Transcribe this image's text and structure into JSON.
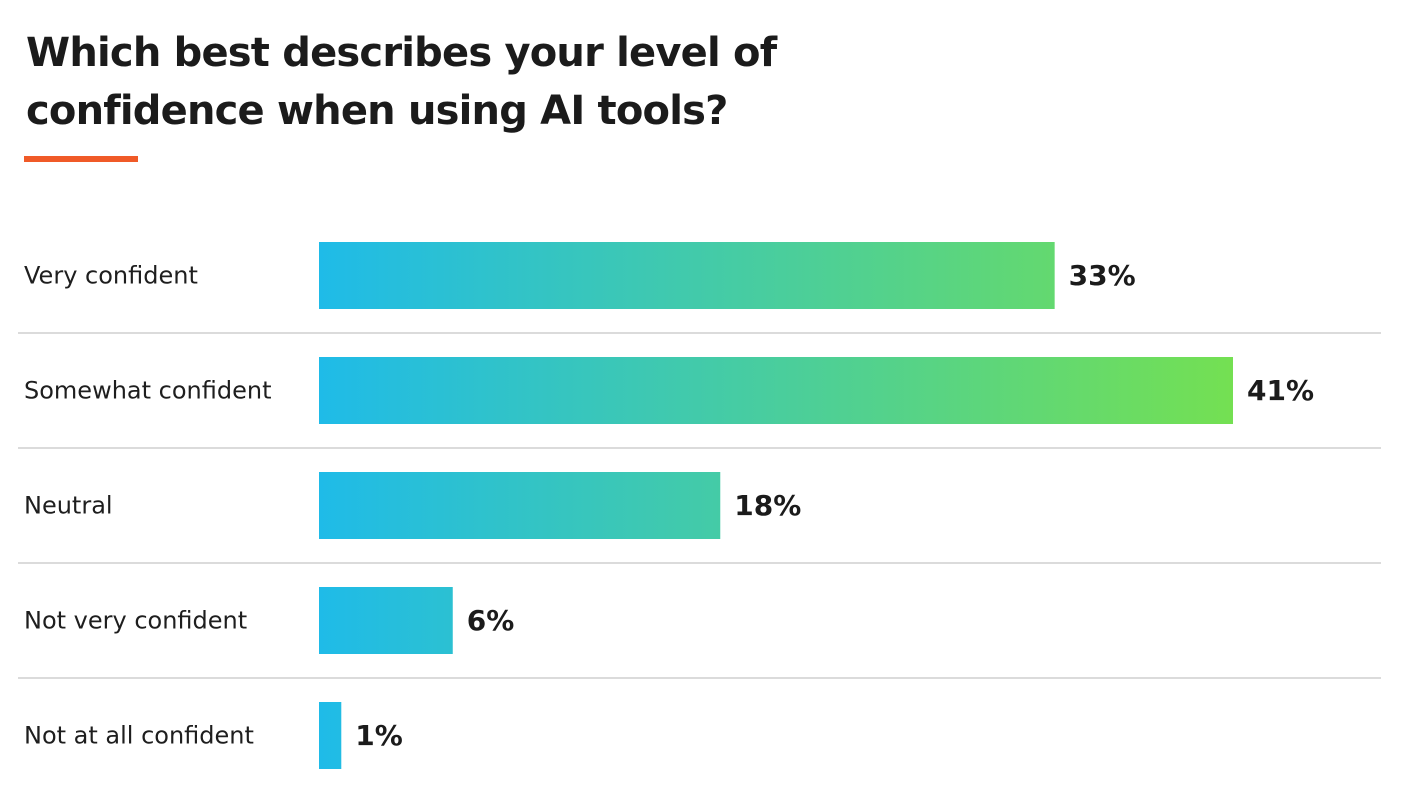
{
  "chart_data": {
    "type": "bar",
    "orientation": "horizontal",
    "title": "Which best describes your level of confidence when using AI tools?",
    "categories": [
      "Very confident",
      "Somewhat confident",
      "Neutral",
      "Not very confident",
      "Not at all confident"
    ],
    "values": [
      33,
      41,
      18,
      6,
      1
    ],
    "value_labels": [
      "33%",
      "41%",
      "18%",
      "6%",
      "1%"
    ],
    "unit": "%",
    "xlim": [
      0,
      41
    ],
    "grid": false,
    "colors": {
      "accent": "#f05a28",
      "bar_gradient_start": "#1fbbe8",
      "bar_gradient_end": "#74e052",
      "divider": "#cfcfcf",
      "text": "#1b1b1b"
    }
  }
}
